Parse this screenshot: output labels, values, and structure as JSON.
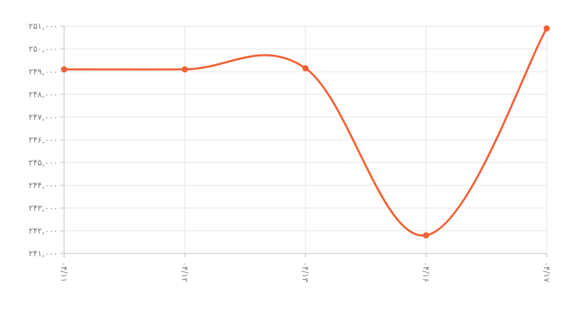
{
  "chart_data": {
    "type": "line",
    "title": "",
    "xlabel": "",
    "ylabel": "",
    "categories": [
      "۰۴/۱۱",
      "۰۴/۱۲",
      "۰۴/۱۳",
      "۰۴/۱۶",
      "۰۴/۱۷"
    ],
    "series": [
      {
        "values": [
          249100,
          249100,
          249150,
          241800,
          250900
        ]
      }
    ],
    "y_ticks": [
      241000,
      242000,
      243000,
      244000,
      245000,
      246000,
      247000,
      248000,
      249000,
      250000,
      251000
    ],
    "y_tick_labels": [
      "۲۴۱,۰۰۰",
      "۲۴۲,۰۰۰",
      "۲۴۳,۰۰۰",
      "۲۴۴,۰۰۰",
      "۲۴۵,۰۰۰",
      "۲۴۶,۰۰۰",
      "۲۴۷,۰۰۰",
      "۲۴۸,۰۰۰",
      "۲۴۹,۰۰۰",
      "۲۵۰,۰۰۰",
      "۲۵۱,۰۰۰"
    ],
    "ylim": [
      241000,
      251000
    ],
    "grid": true,
    "legend": "none",
    "line_color": "#f26135"
  }
}
